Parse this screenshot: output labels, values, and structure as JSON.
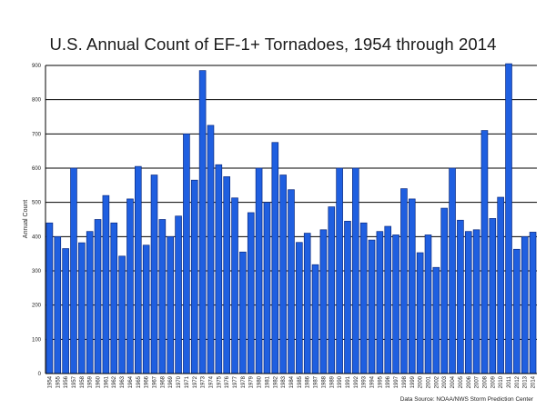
{
  "chart_data": {
    "type": "bar",
    "title": "U.S. Annual Count of EF-1+ Tornadoes, 1954 through 2014",
    "xlabel": "",
    "ylabel": "Annual Count",
    "ylim": [
      0,
      900
    ],
    "yticks": [
      0,
      100,
      200,
      300,
      400,
      500,
      600,
      700,
      800,
      900
    ],
    "grid": "horizontal",
    "bar_color": "#1f5fe0",
    "source": "Data Source: NOAA/NWS Storm Prediction Center",
    "categories": [
      "1954",
      "1955",
      "1956",
      "1957",
      "1958",
      "1959",
      "1960",
      "1961",
      "1962",
      "1963",
      "1964",
      "1965",
      "1966",
      "1967",
      "1968",
      "1969",
      "1970",
      "1971",
      "1972",
      "1973",
      "1974",
      "1975",
      "1976",
      "1977",
      "1978",
      "1979",
      "1980",
      "1981",
      "1982",
      "1983",
      "1984",
      "1985",
      "1986",
      "1987",
      "1988",
      "1989",
      "1990",
      "1991",
      "1992",
      "1993",
      "1994",
      "1995",
      "1996",
      "1997",
      "1998",
      "1999",
      "2000",
      "2001",
      "2002",
      "2003",
      "2004",
      "2005",
      "2006",
      "2007",
      "2008",
      "2009",
      "2010",
      "2011",
      "2012",
      "2013",
      "2014"
    ],
    "values": [
      440,
      400,
      365,
      600,
      382,
      415,
      450,
      520,
      440,
      343,
      510,
      605,
      375,
      580,
      450,
      400,
      460,
      700,
      565,
      885,
      725,
      610,
      575,
      513,
      355,
      470,
      600,
      500,
      675,
      580,
      537,
      383,
      410,
      318,
      420,
      487,
      600,
      445,
      600,
      440,
      390,
      415,
      430,
      405,
      540,
      510,
      353,
      405,
      310,
      483,
      600,
      448,
      415,
      420,
      710,
      453,
      515,
      905,
      363,
      400,
      413
    ]
  }
}
